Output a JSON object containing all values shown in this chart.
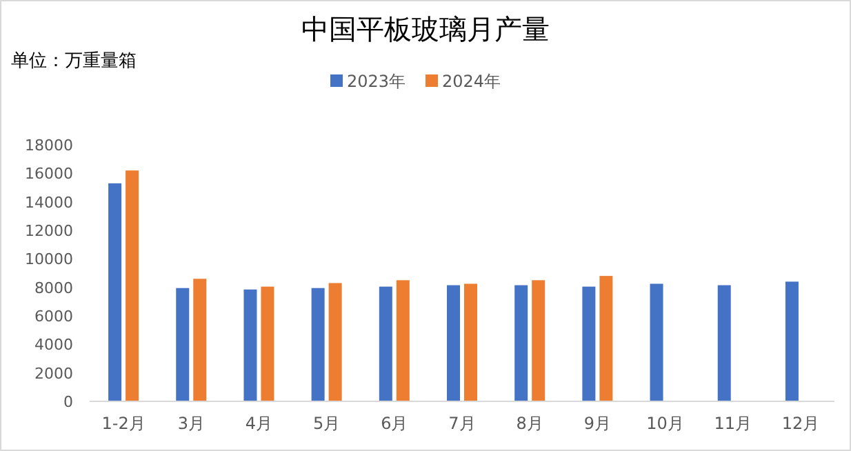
{
  "chart_data": {
    "type": "bar",
    "title": "中国平板玻璃月产量",
    "annotations": [
      "单位：万重量箱"
    ],
    "categories": [
      "1-2月",
      "3月",
      "4月",
      "5月",
      "6月",
      "7月",
      "8月",
      "9月",
      "10月",
      "11月",
      "12月"
    ],
    "series": [
      {
        "name": "2023年",
        "color": "#4472c4",
        "values": [
          15300,
          7950,
          7850,
          7950,
          8050,
          8150,
          8150,
          8050,
          8250,
          8150,
          8400
        ]
      },
      {
        "name": "2024年",
        "color": "#ed7d31",
        "values": [
          16200,
          8600,
          8050,
          8300,
          8500,
          8250,
          8500,
          8800,
          null,
          null,
          null
        ]
      }
    ],
    "ylim": [
      0,
      18000
    ],
    "yticks": [
      0,
      2000,
      4000,
      6000,
      8000,
      10000,
      12000,
      14000,
      16000,
      18000
    ],
    "grid": false,
    "legend": "top"
  }
}
